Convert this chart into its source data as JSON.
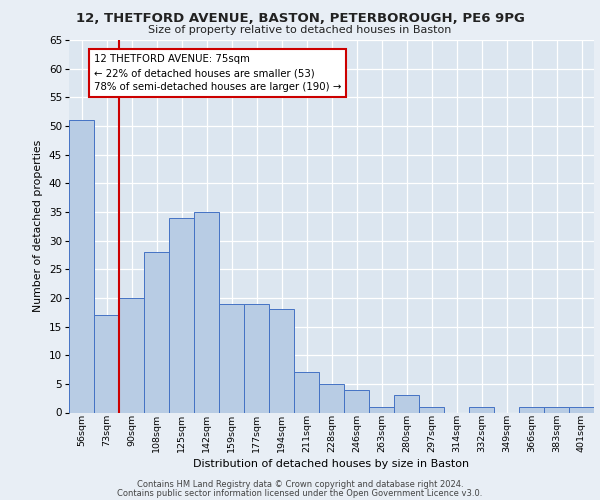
{
  "title1": "12, THETFORD AVENUE, BASTON, PETERBOROUGH, PE6 9PG",
  "title2": "Size of property relative to detached houses in Baston",
  "xlabel": "Distribution of detached houses by size in Baston",
  "ylabel": "Number of detached properties",
  "categories": [
    "56sqm",
    "73sqm",
    "90sqm",
    "108sqm",
    "125sqm",
    "142sqm",
    "159sqm",
    "177sqm",
    "194sqm",
    "211sqm",
    "228sqm",
    "246sqm",
    "263sqm",
    "280sqm",
    "297sqm",
    "314sqm",
    "332sqm",
    "349sqm",
    "366sqm",
    "383sqm",
    "401sqm"
  ],
  "values": [
    51,
    17,
    20,
    28,
    34,
    35,
    19,
    19,
    18,
    7,
    5,
    4,
    1,
    3,
    1,
    0,
    1,
    0,
    1,
    1,
    1
  ],
  "bar_color": "#b8cce4",
  "bar_edge_color": "#4472c4",
  "background_color": "#e8eef5",
  "plot_bg_color": "#dce6f0",
  "grid_color": "#ffffff",
  "annotation_line1": "12 THETFORD AVENUE: 75sqm",
  "annotation_line2": "← 22% of detached houses are smaller (53)",
  "annotation_line3": "78% of semi-detached houses are larger (190) →",
  "annotation_box_edge": "#cc0000",
  "vline_color": "#cc0000",
  "vline_x_index": 1,
  "ylim": [
    0,
    65
  ],
  "yticks": [
    0,
    5,
    10,
    15,
    20,
    25,
    30,
    35,
    40,
    45,
    50,
    55,
    60,
    65
  ],
  "footer1": "Contains HM Land Registry data © Crown copyright and database right 2024.",
  "footer2": "Contains public sector information licensed under the Open Government Licence v3.0."
}
